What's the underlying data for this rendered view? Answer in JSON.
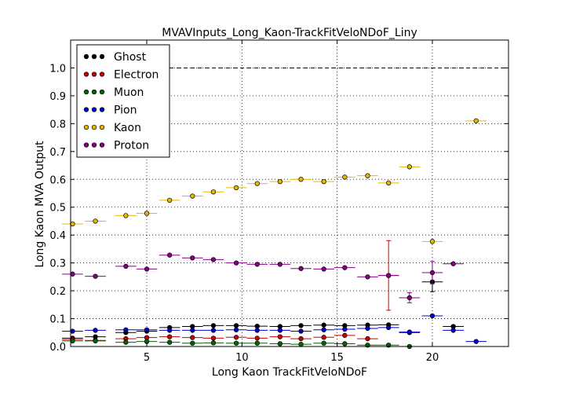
{
  "chart_data": {
    "type": "scatter",
    "title": "MVAVInputs_Long_Kaon-TrackFitVeloNDoF_Liny",
    "xlabel": "Long Kaon TrackFitVeloNDoF",
    "ylabel": "Long Kaon MVA Output",
    "xlim": [
      1,
      24
    ],
    "ylim": [
      0,
      1.1
    ],
    "xticks": [
      "5",
      "10",
      "15",
      "20"
    ],
    "yticks": [
      "0.0",
      "0.1",
      "0.2",
      "0.3",
      "0.4",
      "0.5",
      "0.6",
      "0.7",
      "0.8",
      "0.9",
      "1.0"
    ],
    "x_tick_values": [
      5,
      10,
      15,
      20
    ],
    "y_tick_values": [
      0,
      0.1,
      0.2,
      0.3,
      0.4,
      0.5,
      0.6,
      0.7,
      0.8,
      0.9,
      1.0
    ],
    "bin_half_width": 0.55,
    "grid": true,
    "reference_line": 1.0,
    "legend_position": "top-left",
    "series": [
      {
        "name": "Ghost",
        "color": "#000000",
        "x": [
          1.1,
          2.3,
          3.9,
          5.0,
          6.2,
          7.4,
          8.5,
          9.7,
          10.8,
          12.0,
          13.1,
          14.3,
          15.4,
          16.6,
          17.7,
          18.8,
          20.0,
          21.1
        ],
        "y": [
          0.03,
          0.035,
          0.05,
          0.055,
          0.068,
          0.072,
          0.075,
          0.075,
          0.073,
          0.072,
          0.075,
          0.077,
          0.075,
          0.077,
          0.078,
          0.05,
          0.232,
          0.072
        ],
        "err": [
          0,
          0,
          0,
          0,
          0,
          0,
          0,
          0,
          0,
          0,
          0,
          0,
          0,
          0,
          0,
          0,
          0.035,
          0
        ]
      },
      {
        "name": "Electron",
        "color": "#cc0000",
        "x": [
          1.1,
          2.3,
          3.9,
          5.0,
          6.2,
          7.4,
          8.5,
          9.7,
          10.8,
          12.0,
          13.1,
          14.3,
          15.4,
          16.6,
          17.7
        ],
        "y": [
          0.025,
          0.022,
          0.028,
          0.032,
          0.035,
          0.032,
          0.03,
          0.033,
          0.03,
          0.035,
          0.028,
          0.033,
          0.04,
          0.028,
          0.255
        ],
        "err": [
          0,
          0,
          0,
          0,
          0,
          0,
          0,
          0,
          0,
          0,
          0,
          0,
          0,
          0,
          0.125
        ]
      },
      {
        "name": "Muon",
        "color": "#006600",
        "x": [
          1.1,
          2.3,
          3.9,
          5.0,
          6.2,
          7.4,
          8.5,
          9.7,
          10.8,
          12.0,
          13.1,
          14.3,
          15.4,
          16.6,
          17.7,
          18.8
        ],
        "y": [
          0.02,
          0.02,
          0.015,
          0.018,
          0.015,
          0.012,
          0.013,
          0.012,
          0.012,
          0.01,
          0.008,
          0.012,
          0.01,
          0.005,
          0.005,
          0.0
        ],
        "err": [
          0,
          0,
          0,
          0,
          0,
          0,
          0,
          0,
          0,
          0,
          0,
          0,
          0,
          0,
          0,
          0
        ]
      },
      {
        "name": "Pion",
        "color": "#0000cc",
        "x": [
          1.1,
          2.3,
          3.9,
          5.0,
          6.2,
          7.4,
          8.5,
          9.7,
          10.8,
          12.0,
          13.1,
          14.3,
          15.4,
          16.6,
          17.7,
          18.8,
          20.0,
          21.1,
          22.3
        ],
        "y": [
          0.055,
          0.058,
          0.06,
          0.06,
          0.058,
          0.058,
          0.058,
          0.06,
          0.058,
          0.058,
          0.055,
          0.06,
          0.062,
          0.065,
          0.068,
          0.052,
          0.11,
          0.058,
          0.018
        ],
        "err": [
          0,
          0,
          0,
          0,
          0,
          0,
          0,
          0,
          0,
          0,
          0,
          0,
          0,
          0,
          0,
          0,
          0,
          0,
          0
        ]
      },
      {
        "name": "Kaon",
        "color": "#e6b800",
        "x": [
          1.1,
          2.3,
          3.9,
          5.0,
          6.2,
          7.4,
          8.5,
          9.7,
          10.8,
          12.0,
          13.1,
          14.3,
          15.4,
          16.6,
          17.7,
          18.8,
          20.0,
          22.3
        ],
        "y": [
          0.44,
          0.45,
          0.47,
          0.478,
          0.525,
          0.54,
          0.555,
          0.57,
          0.585,
          0.592,
          0.6,
          0.592,
          0.608,
          0.613,
          0.587,
          0.645,
          0.377,
          0.81
        ],
        "err": [
          0,
          0,
          0,
          0,
          0,
          0,
          0,
          0,
          0,
          0,
          0,
          0,
          0,
          0,
          0,
          0,
          0,
          0
        ]
      },
      {
        "name": "Proton",
        "color": "#880088",
        "x": [
          1.1,
          2.3,
          3.9,
          5.0,
          6.2,
          7.4,
          8.5,
          9.7,
          10.8,
          12.0,
          13.1,
          14.3,
          15.4,
          16.6,
          17.7,
          18.8,
          20.0,
          21.1
        ],
        "y": [
          0.26,
          0.252,
          0.288,
          0.278,
          0.328,
          0.318,
          0.312,
          0.3,
          0.295,
          0.295,
          0.28,
          0.278,
          0.283,
          0.25,
          0.255,
          0.175,
          0.265,
          0.297
        ],
        "err": [
          0,
          0,
          0,
          0,
          0,
          0,
          0,
          0,
          0,
          0,
          0,
          0,
          0,
          0,
          0,
          0.018,
          0.04,
          0
        ]
      }
    ]
  }
}
